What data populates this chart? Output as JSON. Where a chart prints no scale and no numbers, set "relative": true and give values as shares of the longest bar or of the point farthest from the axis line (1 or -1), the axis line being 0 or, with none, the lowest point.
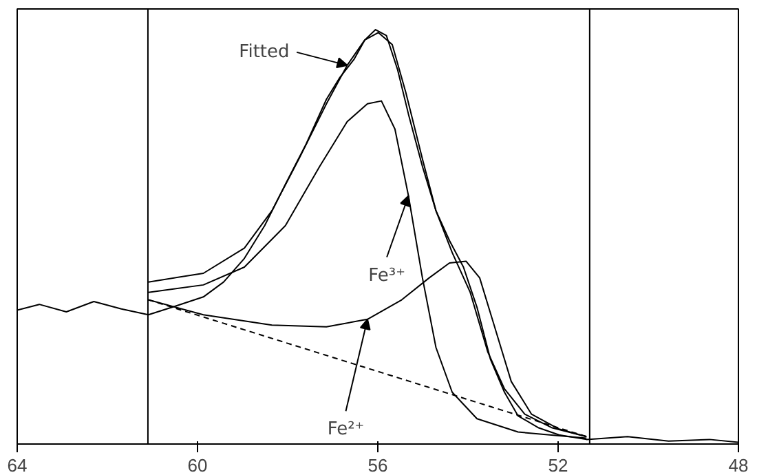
{
  "chart_data": {
    "type": "line",
    "relative": true,
    "xlim": [
      64,
      48
    ],
    "xticks": [
      64,
      60,
      56,
      52,
      48
    ],
    "tick_labels": "x",
    "grid": false,
    "marker": "none",
    "series": [
      {
        "color": "#000000",
        "line_style": "solid",
        "x": [
          64.0,
          63.51,
          62.91,
          62.3,
          61.69,
          61.09,
          60.48,
          59.87,
          59.42,
          58.96,
          58.51,
          58.05,
          57.59,
          57.14,
          56.84,
          56.53,
          56.29,
          56.05,
          55.81,
          55.56,
          55.32,
          55.01,
          54.71,
          54.41,
          54.1,
          53.8,
          53.5,
          53.19,
          52.89,
          52.43,
          51.98,
          51.37,
          50.46,
          49.55,
          48.64,
          48.0
        ],
        "values": [
          0.323,
          0.337,
          0.319,
          0.344,
          0.326,
          0.312,
          0.333,
          0.355,
          0.391,
          0.448,
          0.527,
          0.627,
          0.724,
          0.832,
          0.885,
          0.928,
          0.975,
          1.0,
          0.986,
          0.903,
          0.796,
          0.67,
          0.563,
          0.491,
          0.427,
          0.33,
          0.204,
          0.125,
          0.068,
          0.039,
          0.022,
          0.011,
          0.018,
          0.007,
          0.011,
          0.004
        ]
      },
      {
        "color": "#000000",
        "line_style": "solid",
        "x": [
          61.09,
          59.87,
          58.96,
          58.35,
          57.75,
          57.14,
          56.68,
          56.29,
          55.99,
          55.68,
          55.38,
          55.01,
          54.71,
          54.35,
          53.95,
          53.56,
          53.19,
          52.74,
          52.13,
          51.37
        ],
        "values": [
          0.391,
          0.412,
          0.473,
          0.563,
          0.688,
          0.821,
          0.914,
          0.975,
          0.993,
          0.964,
          0.849,
          0.688,
          0.563,
          0.462,
          0.366,
          0.222,
          0.133,
          0.072,
          0.039,
          0.018
        ]
      },
      {
        "color": "#000000",
        "line_style": "solid",
        "x": [
          61.09,
          59.87,
          58.96,
          58.05,
          57.29,
          56.68,
          56.23,
          55.92,
          55.62,
          55.32,
          55.01,
          54.71,
          54.35,
          53.8,
          52.89,
          51.37
        ],
        "values": [
          0.366,
          0.384,
          0.427,
          0.527,
          0.67,
          0.778,
          0.821,
          0.828,
          0.76,
          0.599,
          0.401,
          0.233,
          0.125,
          0.061,
          0.029,
          0.014
        ]
      },
      {
        "color": "#000000",
        "line_style": "solid",
        "x": [
          61.09,
          59.87,
          58.35,
          57.14,
          56.23,
          55.47,
          54.86,
          54.41,
          54.04,
          53.74,
          53.44,
          53.04,
          52.59,
          51.98,
          51.37
        ],
        "values": [
          0.348,
          0.312,
          0.287,
          0.283,
          0.301,
          0.348,
          0.401,
          0.437,
          0.441,
          0.401,
          0.294,
          0.151,
          0.072,
          0.036,
          0.018
        ]
      },
      {
        "color": "#000000",
        "line_style": "dashed",
        "x": [
          61.09,
          51.37
        ],
        "values": [
          0.348,
          0.018
        ]
      }
    ],
    "ref_lines": [
      {
        "axis": "x",
        "value": 61.1,
        "label": null,
        "color": "#000000"
      },
      {
        "axis": "x",
        "value": 51.3,
        "label": null,
        "color": "#000000"
      }
    ],
    "annotations": [
      {
        "text": "Fitted",
        "x": 56.68,
        "y": 0.914
      },
      {
        "text": "Fe³⁺",
        "x": 55.32,
        "y": 0.599
      },
      {
        "text": "Fe²⁺",
        "x": 56.23,
        "y": 0.301
      }
    ]
  }
}
